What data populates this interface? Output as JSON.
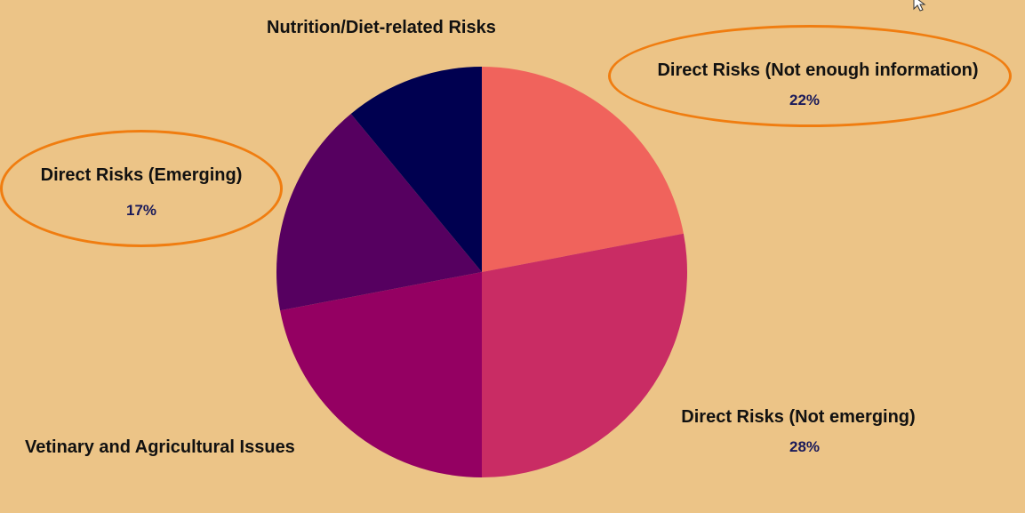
{
  "chart_data": {
    "type": "pie",
    "slices": [
      {
        "label": "Direct Risks (Not enough information)",
        "value": 22,
        "value_label": "22%",
        "color": "#f0635c"
      },
      {
        "label": "Direct Risks (Not emerging)",
        "value": 28,
        "value_label": "28%",
        "color": "#c92c64"
      },
      {
        "label": "Vetinary and Agricultural Issues",
        "value": 22,
        "color": "#940062"
      },
      {
        "label": "Direct Risks (Emerging)",
        "value": 17,
        "value_label": "17%",
        "color": "#560060"
      },
      {
        "label": "Nutrition/Diet-related Risks",
        "value": 11,
        "color": "#000050"
      }
    ],
    "highlighted": [
      "Direct Risks (Not enough information)",
      "Direct Risks (Emerging)"
    ],
    "highlight_color": "#f07d10",
    "background_color": "#ecc487"
  }
}
